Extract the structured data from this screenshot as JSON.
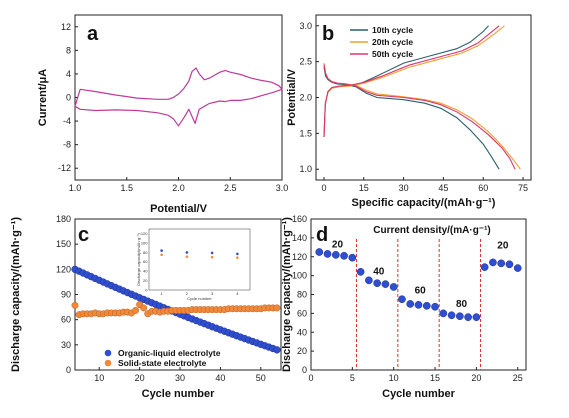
{
  "chart_data": [
    {
      "panel_label": "a",
      "type": "line",
      "xlabel": "Potential/V",
      "ylabel": "Current/μA",
      "xlim": [
        1.0,
        3.0
      ],
      "ylim": [
        -14,
        14
      ],
      "xticks": [
        "1.0",
        "1.5",
        "2.0",
        "2.5",
        "3.0"
      ],
      "yticks": [
        "-12",
        "-8",
        "-4",
        "0",
        "4",
        "8",
        "12"
      ],
      "series": [
        {
          "color": "#c0399a",
          "x": [
            1.0,
            1.05,
            1.2,
            1.4,
            1.6,
            1.8,
            1.9,
            1.95,
            2.0,
            2.05,
            2.1,
            2.13,
            2.16,
            2.2,
            2.3,
            2.4,
            2.45,
            2.5,
            2.6,
            2.7,
            2.8,
            2.9,
            2.97,
            3.0,
            2.97,
            2.9,
            2.8,
            2.7,
            2.6,
            2.5,
            2.45,
            2.4,
            2.35,
            2.3,
            2.25,
            2.2,
            2.17,
            2.13,
            2.1,
            2.05,
            2.0,
            1.95,
            1.9,
            1.8,
            1.6,
            1.4,
            1.2,
            1.05,
            1.0
          ],
          "y": [
            -1.5,
            -2.0,
            -2.2,
            -2.1,
            -2.2,
            -2.6,
            -3.0,
            -3.6,
            -4.8,
            -3.5,
            -2.0,
            -3.2,
            -4.4,
            -2.0,
            -1.0,
            -0.6,
            -0.7,
            -0.5,
            -0.5,
            -0.2,
            0.3,
            0.8,
            1.2,
            1.4,
            2.0,
            2.6,
            2.9,
            3.3,
            3.9,
            4.3,
            4.6,
            4.3,
            3.8,
            3.3,
            3.0,
            4.0,
            5.0,
            4.4,
            2.8,
            1.5,
            0.6,
            0.0,
            -0.3,
            -0.3,
            -0.1,
            0.4,
            1.0,
            1.4,
            -1.5
          ]
        }
      ]
    },
    {
      "panel_label": "b",
      "type": "line",
      "xlabel": "Specific capacity/(mAh·g⁻¹)",
      "ylabel": "Potential/V",
      "xlim": [
        -3,
        78
      ],
      "ylim": [
        0.85,
        3.15
      ],
      "xticks": [
        "0",
        "15",
        "30",
        "45",
        "60",
        "75"
      ],
      "yticks": [
        "1.0",
        "1.5",
        "2.0",
        "2.5",
        "3.0"
      ],
      "legend_position": "top-left",
      "series": [
        {
          "name": "10th cycle",
          "color": "#2c5f6e",
          "discharge": {
            "x": [
              0,
              0.6,
              1.5,
              3,
              5,
              8,
              12,
              16,
              20,
              30,
              38,
              44,
              50,
              55,
              60,
              63,
              66
            ],
            "y": [
              2.42,
              2.3,
              2.25,
              2.21,
              2.19,
              2.18,
              2.15,
              2.06,
              2.0,
              1.97,
              1.92,
              1.85,
              1.72,
              1.55,
              1.35,
              1.18,
              1.0
            ]
          },
          "charge": {
            "x": [
              0,
              0.5,
              1.5,
              3,
              6,
              10,
              14,
              20,
              30,
              40,
              50,
              55,
              60,
              62
            ],
            "y": [
              1.45,
              1.9,
              2.08,
              2.14,
              2.16,
              2.17,
              2.2,
              2.3,
              2.48,
              2.58,
              2.68,
              2.77,
              2.92,
              3.0
            ]
          }
        },
        {
          "name": "20th cycle",
          "color": "#f0a030",
          "discharge": {
            "x": [
              0,
              0.6,
              1.5,
              3,
              5,
              8,
              12,
              16,
              20,
              30,
              38,
              44,
              50,
              56,
              62,
              67,
              71,
              74
            ],
            "y": [
              2.48,
              2.34,
              2.27,
              2.22,
              2.2,
              2.19,
              2.17,
              2.1,
              2.05,
              2.01,
              1.97,
              1.92,
              1.83,
              1.7,
              1.52,
              1.33,
              1.15,
              1.0
            ]
          },
          "charge": {
            "x": [
              0,
              0.5,
              1.5,
              3,
              6,
              10,
              15,
              22,
              32,
              42,
              52,
              58,
              64,
              68
            ],
            "y": [
              1.45,
              1.9,
              2.07,
              2.13,
              2.15,
              2.16,
              2.2,
              2.28,
              2.42,
              2.52,
              2.62,
              2.72,
              2.88,
              3.0
            ]
          }
        },
        {
          "name": "50th cycle",
          "color": "#e0336a",
          "discharge": {
            "x": [
              0,
              0.6,
              1.5,
              3,
              5,
              8,
              12,
              16,
              20,
              30,
              38,
              44,
              50,
              56,
              62,
              67,
              70,
              72
            ],
            "y": [
              2.46,
              2.33,
              2.26,
              2.22,
              2.2,
              2.19,
              2.16,
              2.08,
              2.03,
              2.0,
              1.96,
              1.9,
              1.8,
              1.66,
              1.48,
              1.3,
              1.15,
              1.0
            ]
          },
          "charge": {
            "x": [
              0,
              0.5,
              1.5,
              3,
              6,
              10,
              15,
              22,
              32,
              42,
              52,
              58,
              62,
              66
            ],
            "y": [
              1.45,
              1.92,
              2.08,
              2.14,
              2.16,
              2.17,
              2.21,
              2.3,
              2.45,
              2.55,
              2.65,
              2.76,
              2.88,
              3.0
            ]
          }
        }
      ]
    },
    {
      "panel_label": "c",
      "type": "scatter",
      "xlabel": "Cycle number",
      "ylabel": "Discharge capacity/(mAh·g⁻¹)",
      "xlim": [
        4,
        55
      ],
      "ylim": [
        0,
        180
      ],
      "xticks": [
        "10",
        "20",
        "30",
        "40",
        "50"
      ],
      "yticks": [
        "0",
        "30",
        "60",
        "90",
        "120",
        "150",
        "180"
      ],
      "legend_position": "bottom-left",
      "series": [
        {
          "name": "Organic-liquid electrolyte",
          "color": "#2f4fd0",
          "x_start": 4,
          "x_end": 54,
          "y_start": 120,
          "y_end": 24,
          "curve": 0.85
        },
        {
          "name": "Solid-state electrolyte",
          "color": "#f08a3a",
          "x": [
            4,
            5,
            6,
            7,
            8,
            9,
            10,
            11,
            12,
            13,
            14,
            15,
            16,
            17,
            18,
            19,
            20,
            21,
            22,
            23,
            24,
            25,
            26,
            27,
            28,
            29,
            30,
            31,
            32,
            33,
            34,
            35,
            36,
            37,
            38,
            39,
            40,
            41,
            42,
            43,
            44,
            45,
            46,
            47,
            48,
            49,
            50,
            51,
            52,
            53,
            54
          ],
          "y": [
            77,
            66,
            67,
            67,
            67,
            68,
            67,
            67,
            68,
            68,
            68,
            68,
            69,
            69,
            68,
            71,
            78,
            74,
            67,
            70,
            70,
            69,
            70,
            70,
            71,
            71,
            71,
            71,
            71,
            72,
            72,
            72,
            72,
            72,
            72,
            72,
            72,
            72,
            73,
            73,
            73,
            73,
            73,
            73,
            73,
            73,
            73,
            74,
            74,
            74,
            74
          ]
        }
      ],
      "inset": {
        "ylabel": "Discharge capacity/(mAh·g⁻¹)",
        "xlabel": "Cycle number",
        "xticks": [
          "1",
          "2",
          "3",
          "4"
        ],
        "yticks": [
          "120",
          "100",
          "80",
          "60",
          "40",
          "20",
          "0"
        ],
        "ylim": [
          0,
          130
        ],
        "series": [
          {
            "color": "#2f4fd0",
            "x": [
              1,
              2,
              3,
              4
            ],
            "y": [
              84,
              80,
              79,
              77
            ]
          },
          {
            "color": "#f08a3a",
            "x": [
              1,
              2,
              3,
              4
            ],
            "y": [
              75,
              71,
              70,
              69
            ]
          }
        ]
      }
    },
    {
      "panel_label": "d",
      "type": "scatter",
      "xlabel": "Cycle number",
      "ylabel": "Discharge capacity/(mAh·g⁻¹)",
      "title": "Current density/(mA·g⁻¹)",
      "xlim": [
        0,
        26
      ],
      "ylim": [
        0,
        160
      ],
      "xticks": [
        "0",
        "5",
        "10",
        "15",
        "20",
        "25"
      ],
      "yticks": [
        "0",
        "20",
        "40",
        "60",
        "80",
        "100",
        "120",
        "140",
        "160"
      ],
      "separators": [
        5.5,
        10.5,
        15.5,
        20.5
      ],
      "rate_labels": [
        {
          "text": "20",
          "x": 3.2,
          "y": 130
        },
        {
          "text": "40",
          "x": 8.2,
          "y": 101
        },
        {
          "text": "60",
          "x": 13.2,
          "y": 81
        },
        {
          "text": "80",
          "x": 18.2,
          "y": 67
        },
        {
          "text": "20",
          "x": 23.2,
          "y": 129
        }
      ],
      "series": [
        {
          "color": "#2f4fd0",
          "x": [
            1,
            2,
            3,
            4,
            5,
            6,
            7,
            8,
            9,
            10,
            11,
            12,
            13,
            14,
            15,
            16,
            17,
            18,
            19,
            20,
            21,
            22,
            23,
            24,
            25
          ],
          "y": [
            125,
            123,
            122,
            121,
            119,
            104,
            95,
            92,
            91,
            88,
            75,
            70,
            69,
            68,
            67,
            60,
            58,
            57,
            56,
            56,
            109,
            114,
            113,
            112,
            108
          ]
        }
      ]
    }
  ]
}
